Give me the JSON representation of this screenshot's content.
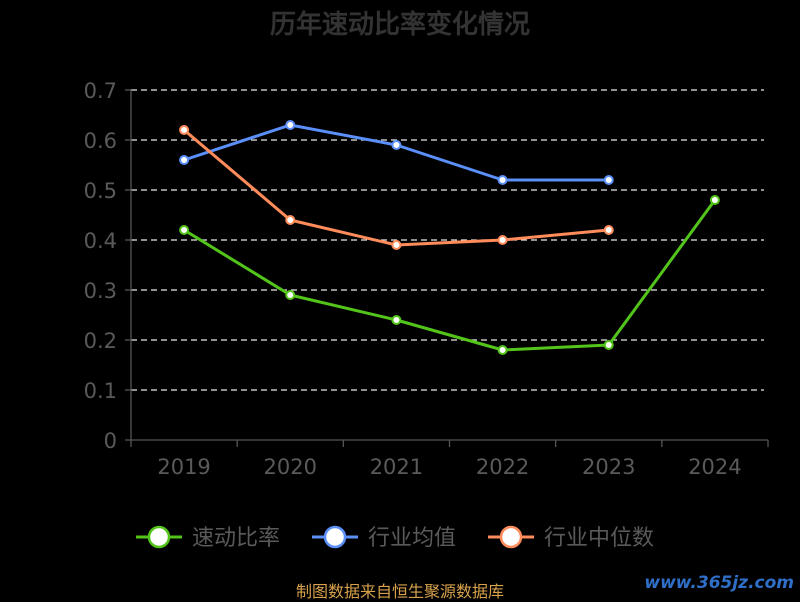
{
  "chart_data": {
    "type": "line",
    "title": "历年速动比率变化情况",
    "categories": [
      "2019",
      "2020",
      "2021",
      "2022",
      "2023",
      "2024"
    ],
    "ylim": [
      0,
      0.7
    ],
    "yticks": [
      "0",
      "0.1",
      "0.2",
      "0.3",
      "0.4",
      "0.5",
      "0.6",
      "0.7"
    ],
    "grid": true,
    "legend_position": "bottom",
    "series": [
      {
        "name": "速动比率",
        "color": "#52c41a",
        "values": [
          0.42,
          0.29,
          0.24,
          0.18,
          0.19,
          0.48
        ]
      },
      {
        "name": "行业均值",
        "color": "#5b8ff9",
        "values": [
          0.56,
          0.63,
          0.59,
          0.52,
          0.52,
          null
        ]
      },
      {
        "name": "行业中位数",
        "color": "#ff8c5a",
        "values": [
          0.62,
          0.44,
          0.39,
          0.4,
          0.42,
          null
        ]
      }
    ]
  },
  "footer": {
    "source": "制图数据来自恒生聚源数据库",
    "watermark": "www.365jz.com"
  }
}
